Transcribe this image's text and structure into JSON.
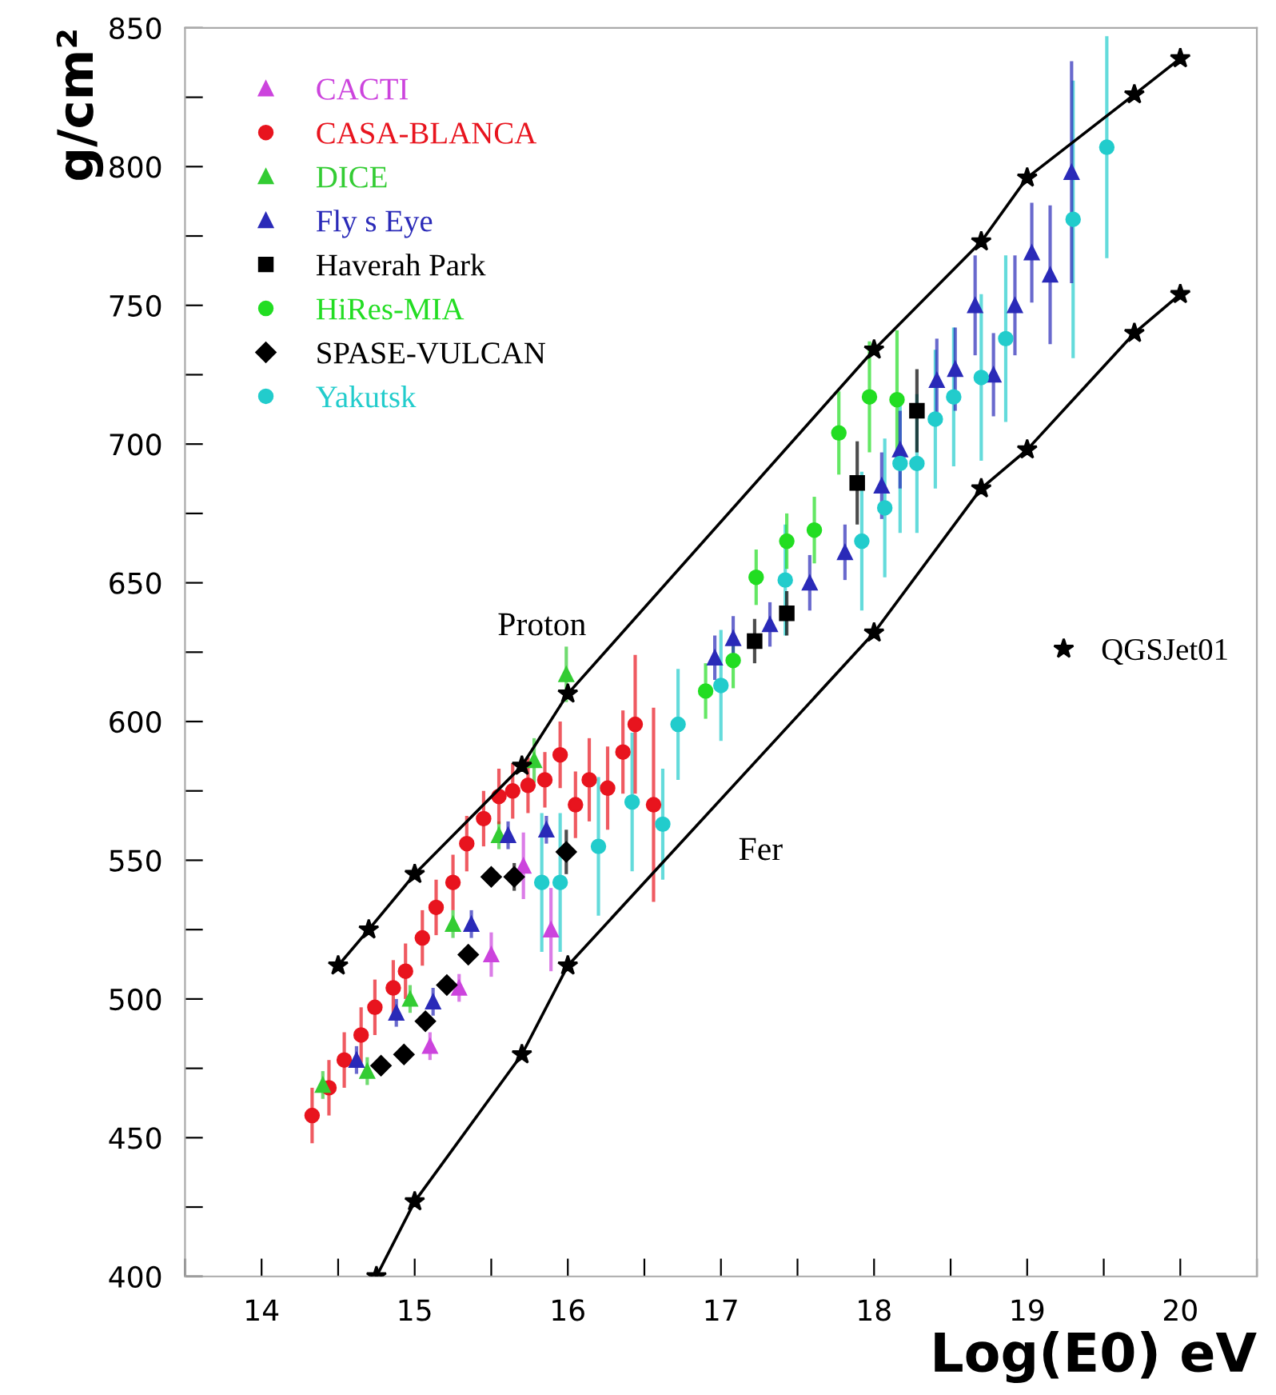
{
  "chart_data": {
    "type": "scatter",
    "xlabel": "Log(E0) eV",
    "ylabel": "g/cm²",
    "xlim": [
      13.5,
      20.5
    ],
    "ylim": [
      400,
      850
    ],
    "xticks": [
      {
        "value": 13.5,
        "label": null
      },
      14,
      {
        "value": 14.5,
        "label": null
      },
      15,
      {
        "value": 15.5,
        "label": null
      },
      16,
      {
        "value": 16.5,
        "label": null
      },
      17,
      {
        "value": 17.5,
        "label": null
      },
      18,
      {
        "value": 18.5,
        "label": null
      },
      19,
      {
        "value": 19.5,
        "label": null
      },
      20,
      {
        "value": 20.5,
        "label": null
      }
    ],
    "yticks": [
      400,
      {
        "value": 425,
        "label": null
      },
      450,
      {
        "value": 475,
        "label": null
      },
      500,
      {
        "value": 525,
        "label": null
      },
      550,
      {
        "value": 575,
        "label": null
      },
      600,
      {
        "value": 625,
        "label": null
      },
      650,
      {
        "value": 675,
        "label": null
      },
      700,
      {
        "value": 725,
        "label": null
      },
      750,
      {
        "value": 775,
        "label": null
      },
      800,
      {
        "value": 825,
        "label": null
      },
      850
    ],
    "grid": false,
    "legend": "top left",
    "annotations": [
      "Proton",
      "Fer"
    ],
    "series": [
      {
        "name": "CACTI",
        "color": "#cc44dd",
        "marker": "triangle",
        "x": [
          15.1,
          15.29,
          15.5,
          15.71,
          15.89
        ],
        "values": [
          483,
          504,
          516,
          548,
          525
        ],
        "errors": [
          5,
          5,
          8,
          12,
          15
        ]
      },
      {
        "name": "CASA-BLANCA",
        "color": "#e8141e",
        "marker": "circle",
        "x": [
          14.33,
          14.44,
          14.54,
          14.65,
          14.74,
          14.86,
          14.94,
          15.05,
          15.14,
          15.25,
          15.34,
          15.45,
          15.55,
          15.64,
          15.74,
          15.85,
          15.95,
          16.05,
          16.14,
          16.26,
          16.36,
          16.44,
          16.56
        ],
        "values": [
          458,
          468,
          478,
          487,
          497,
          504,
          510,
          522,
          533,
          542,
          556,
          565,
          573,
          575,
          577,
          579,
          588,
          570,
          579,
          576,
          589,
          599,
          570
        ],
        "errors": [
          10,
          10,
          10,
          10,
          10,
          10,
          10,
          10,
          10,
          10,
          10,
          10,
          10,
          10,
          10,
          10,
          12,
          12,
          15,
          15,
          15,
          25,
          35
        ]
      },
      {
        "name": "DICE",
        "color": "#33cc33",
        "marker": "triangle",
        "x": [
          14.4,
          14.69,
          14.97,
          15.25,
          15.55,
          15.78,
          15.99
        ],
        "values": [
          469,
          474,
          500,
          527,
          559,
          586,
          617
        ],
        "errors": [
          5,
          5,
          5,
          5,
          5,
          8,
          10
        ]
      },
      {
        "name": "Fly s Eye",
        "color": "#2a2ab8",
        "marker": "triangle",
        "x": [
          14.62,
          14.88,
          15.12,
          15.37,
          15.61,
          15.86,
          16.96,
          17.08,
          17.32,
          17.58,
          17.81,
          18.05,
          18.17,
          18.41,
          18.53,
          18.66,
          18.78,
          18.92,
          19.03,
          19.15,
          19.29
        ],
        "values": [
          478,
          495,
          499,
          527,
          559,
          561,
          623,
          630,
          635,
          650,
          661,
          685,
          698,
          723,
          727,
          750,
          725,
          750,
          769,
          761,
          798
        ],
        "errors": [
          5,
          5,
          5,
          5,
          5,
          5,
          8,
          8,
          8,
          10,
          10,
          12,
          14,
          15,
          15,
          18,
          15,
          18,
          18,
          25,
          40
        ]
      },
      {
        "name": "Haverah Park",
        "color": "#000000",
        "marker": "square",
        "x": [
          17.22,
          17.43,
          17.89,
          18.28
        ],
        "values": [
          629,
          639,
          686,
          712
        ],
        "errors": [
          8,
          8,
          15,
          15
        ]
      },
      {
        "name": "HiRes-MIA",
        "color": "#22dd22",
        "marker": "circle",
        "x": [
          16.9,
          17.08,
          17.23,
          17.43,
          17.61,
          17.77,
          17.97,
          18.15
        ],
        "values": [
          611,
          622,
          652,
          665,
          669,
          704,
          717,
          716
        ],
        "errors": [
          10,
          10,
          10,
          10,
          12,
          15,
          20,
          25
        ]
      },
      {
        "name": "SPASE-VULCAN",
        "color": "#000000",
        "marker": "diamond",
        "x": [
          14.78,
          14.93,
          15.07,
          15.21,
          15.35,
          15.5,
          15.65,
          15.99
        ],
        "values": [
          476,
          480,
          492,
          505,
          516,
          544,
          544,
          553
        ],
        "errors": [
          3,
          3,
          3,
          3,
          3,
          3,
          5,
          8
        ]
      },
      {
        "name": "Yakutsk",
        "color": "#22cccc",
        "marker": "circle",
        "x": [
          15.83,
          15.95,
          16.2,
          16.42,
          16.62,
          16.72,
          17.0,
          17.42,
          17.92,
          18.07,
          18.17,
          18.28,
          18.4,
          18.52,
          18.7,
          18.86,
          19.3,
          19.52
        ],
        "values": [
          542,
          542,
          555,
          571,
          563,
          599,
          613,
          651,
          665,
          677,
          693,
          693,
          709,
          717,
          724,
          738,
          781,
          807
        ],
        "errors": [
          25,
          25,
          25,
          25,
          20,
          20,
          20,
          20,
          25,
          25,
          25,
          25,
          25,
          25,
          30,
          30,
          50,
          40
        ]
      },
      {
        "name": "QGSJet01",
        "type": "line",
        "color": "#000000",
        "marker": "star",
        "x": [
          14.5,
          14.7,
          15.0,
          15.7,
          16.0,
          18.0,
          18.7,
          19.0,
          19.7,
          20.0
        ],
        "values": [
          512,
          525,
          545,
          584,
          610,
          734,
          773,
          796,
          826,
          839
        ]
      },
      {
        "type": "line",
        "color": "#000000",
        "marker": "star",
        "x": [
          14.75,
          15.0,
          15.7,
          16.0,
          18.0,
          18.7,
          19.0,
          19.7,
          20.0
        ],
        "values": [
          400,
          427,
          480,
          512,
          632,
          684,
          698,
          740,
          754
        ]
      }
    ]
  }
}
